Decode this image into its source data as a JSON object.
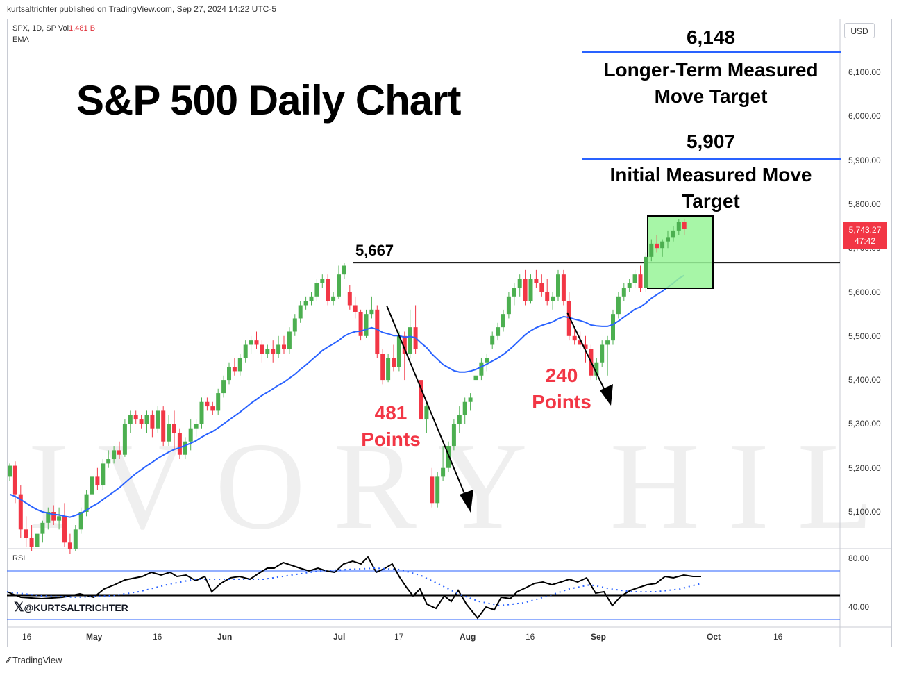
{
  "header": {
    "text": "kurtsaltrichter published on TradingView.com, Sep 27, 2024 14:22 UTC-5"
  },
  "ticker": {
    "symbol": "SPX, 1D, SP  Vol",
    "volume": "1.481 B",
    "indicator": "EMA"
  },
  "currency": "USD",
  "title": "S&P 500 Daily Chart",
  "targets": [
    {
      "value": "6,148",
      "label": "Longer-Term Measured Move Target"
    },
    {
      "value": "5,907",
      "label": "Initial Measured Move Target"
    }
  ],
  "resistance": {
    "label": "5,667",
    "price": 5667
  },
  "annotations": [
    {
      "value": "481",
      "unit": "Points"
    },
    {
      "value": "240",
      "unit": "Points"
    }
  ],
  "price_tag": {
    "price": "5,743.27",
    "countdown": "47:42"
  },
  "rsi": {
    "label": "RSI",
    "levels": [
      "80.00",
      "40.00"
    ]
  },
  "watermark_handle": "@KURTSALTRICHTER",
  "footer": {
    "brand": "TradingView"
  },
  "colors": {
    "up": "#4caf50",
    "down": "#f23645",
    "ema": "#2962ff",
    "target_line": "#2962ff",
    "box": "#98f598"
  },
  "chart_data": {
    "type": "candlestick",
    "y_ticks": [
      "6,100.00",
      "6,000.00",
      "5,900.00",
      "5,800.00",
      "5,700.00",
      "5,600.00",
      "5,500.00",
      "5,400.00",
      "5,300.00",
      "5,200.00",
      "5,100.00"
    ],
    "ylim": [
      5010,
      6220
    ],
    "x_ticks": [
      "16",
      "May",
      "16",
      "Jun",
      "Jul",
      "17",
      "Aug",
      "16",
      "Sep",
      "Oct",
      "16"
    ],
    "ohlc": [
      [
        5180,
        5210,
        5170,
        5205
      ],
      [
        5205,
        5215,
        5120,
        5140
      ],
      [
        5140,
        5160,
        5040,
        5060
      ],
      [
        5060,
        5090,
        5020,
        5040
      ],
      [
        5040,
        5070,
        5010,
        5020
      ],
      [
        5020,
        5060,
        5015,
        5050
      ],
      [
        5050,
        5080,
        5030,
        5075
      ],
      [
        5075,
        5110,
        5060,
        5100
      ],
      [
        5100,
        5115,
        5070,
        5080
      ],
      [
        5080,
        5110,
        5060,
        5090
      ],
      [
        5090,
        5120,
        5020,
        5030
      ],
      [
        5030,
        5050,
        5005,
        5015
      ],
      [
        5015,
        5070,
        5010,
        5060
      ],
      [
        5060,
        5110,
        5050,
        5100
      ],
      [
        5100,
        5150,
        5090,
        5140
      ],
      [
        5140,
        5190,
        5130,
        5180
      ],
      [
        5180,
        5200,
        5150,
        5160
      ],
      [
        5160,
        5220,
        5150,
        5210
      ],
      [
        5210,
        5240,
        5200,
        5220
      ],
      [
        5220,
        5250,
        5210,
        5240
      ],
      [
        5240,
        5260,
        5220,
        5230
      ],
      [
        5230,
        5310,
        5225,
        5300
      ],
      [
        5300,
        5330,
        5280,
        5320
      ],
      [
        5320,
        5330,
        5300,
        5310
      ],
      [
        5310,
        5320,
        5290,
        5300
      ],
      [
        5300,
        5330,
        5280,
        5320
      ],
      [
        5320,
        5330,
        5270,
        5290
      ],
      [
        5290,
        5340,
        5280,
        5330
      ],
      [
        5330,
        5340,
        5250,
        5260
      ],
      [
        5260,
        5320,
        5250,
        5300
      ],
      [
        5300,
        5330,
        5240,
        5280
      ],
      [
        5280,
        5290,
        5220,
        5230
      ],
      [
        5230,
        5270,
        5220,
        5260
      ],
      [
        5260,
        5310,
        5240,
        5290
      ],
      [
        5290,
        5310,
        5270,
        5300
      ],
      [
        5300,
        5360,
        5290,
        5350
      ],
      [
        5350,
        5360,
        5330,
        5340
      ],
      [
        5340,
        5350,
        5320,
        5330
      ],
      [
        5330,
        5380,
        5320,
        5370
      ],
      [
        5370,
        5410,
        5360,
        5400
      ],
      [
        5400,
        5440,
        5390,
        5430
      ],
      [
        5430,
        5450,
        5410,
        5420
      ],
      [
        5420,
        5460,
        5410,
        5450
      ],
      [
        5450,
        5490,
        5440,
        5480
      ],
      [
        5480,
        5500,
        5460,
        5490
      ],
      [
        5490,
        5510,
        5470,
        5480
      ],
      [
        5480,
        5490,
        5440,
        5460
      ],
      [
        5460,
        5480,
        5450,
        5470
      ],
      [
        5470,
        5490,
        5440,
        5460
      ],
      [
        5460,
        5500,
        5450,
        5480
      ],
      [
        5480,
        5500,
        5460,
        5470
      ],
      [
        5470,
        5520,
        5460,
        5510
      ],
      [
        5510,
        5550,
        5500,
        5540
      ],
      [
        5540,
        5580,
        5530,
        5570
      ],
      [
        5570,
        5590,
        5560,
        5580
      ],
      [
        5580,
        5600,
        5570,
        5590
      ],
      [
        5590,
        5630,
        5580,
        5620
      ],
      [
        5620,
        5640,
        5610,
        5630
      ],
      [
        5630,
        5640,
        5570,
        5580
      ],
      [
        5580,
        5600,
        5570,
        5590
      ],
      [
        5590,
        5660,
        5585,
        5640
      ],
      [
        5640,
        5667,
        5630,
        5660
      ],
      [
        5600,
        5615,
        5560,
        5570
      ],
      [
        5570,
        5590,
        5540,
        5555
      ],
      [
        5555,
        5560,
        5490,
        5500
      ],
      [
        5500,
        5560,
        5495,
        5550
      ],
      [
        5550,
        5590,
        5540,
        5560
      ],
      [
        5560,
        5570,
        5450,
        5460
      ],
      [
        5460,
        5470,
        5390,
        5400
      ],
      [
        5400,
        5460,
        5395,
        5450
      ],
      [
        5450,
        5480,
        5420,
        5430
      ],
      [
        5430,
        5510,
        5420,
        5500
      ],
      [
        5500,
        5510,
        5400,
        5460
      ],
      [
        5460,
        5560,
        5450,
        5520
      ],
      [
        5520,
        5570,
        5460,
        5470
      ],
      [
        5400,
        5410,
        5300,
        5310
      ],
      [
        5310,
        5350,
        5280,
        5340
      ],
      [
        5180,
        5200,
        5110,
        5120
      ],
      [
        5120,
        5190,
        5110,
        5180
      ],
      [
        5180,
        5250,
        5170,
        5200
      ],
      [
        5200,
        5260,
        5190,
        5250
      ],
      [
        5250,
        5310,
        5240,
        5300
      ],
      [
        5300,
        5340,
        5280,
        5320
      ],
      [
        5320,
        5360,
        5300,
        5350
      ],
      [
        5350,
        5370,
        5330,
        5360
      ],
      [
        5400,
        5420,
        5390,
        5410
      ],
      [
        5410,
        5450,
        5400,
        5440
      ],
      [
        5440,
        5460,
        5420,
        5450
      ],
      [
        5480,
        5510,
        5470,
        5500
      ],
      [
        5500,
        5530,
        5490,
        5520
      ],
      [
        5520,
        5560,
        5510,
        5550
      ],
      [
        5550,
        5600,
        5540,
        5590
      ],
      [
        5590,
        5620,
        5570,
        5610
      ],
      [
        5610,
        5640,
        5590,
        5630
      ],
      [
        5630,
        5650,
        5570,
        5580
      ],
      [
        5580,
        5640,
        5575,
        5630
      ],
      [
        5630,
        5650,
        5610,
        5620
      ],
      [
        5620,
        5640,
        5590,
        5600
      ],
      [
        5600,
        5630,
        5570,
        5580
      ],
      [
        5580,
        5600,
        5560,
        5590
      ],
      [
        5590,
        5650,
        5580,
        5640
      ],
      [
        5640,
        5650,
        5570,
        5580
      ],
      [
        5580,
        5600,
        5490,
        5500
      ],
      [
        5500,
        5520,
        5480,
        5490
      ],
      [
        5490,
        5510,
        5470,
        5480
      ],
      [
        5480,
        5500,
        5440,
        5470
      ],
      [
        5470,
        5480,
        5400,
        5410
      ],
      [
        5410,
        5450,
        5400,
        5440
      ],
      [
        5440,
        5490,
        5430,
        5480
      ],
      [
        5480,
        5500,
        5410,
        5490
      ],
      [
        5490,
        5560,
        5480,
        5550
      ],
      [
        5550,
        5600,
        5540,
        5590
      ],
      [
        5590,
        5620,
        5580,
        5610
      ],
      [
        5610,
        5630,
        5600,
        5620
      ],
      [
        5620,
        5650,
        5610,
        5640
      ],
      [
        5640,
        5660,
        5600,
        5610
      ],
      [
        5610,
        5690,
        5600,
        5680
      ],
      [
        5680,
        5720,
        5670,
        5710
      ],
      [
        5710,
        5730,
        5690,
        5700
      ],
      [
        5700,
        5720,
        5680,
        5715
      ],
      [
        5715,
        5740,
        5700,
        5725
      ],
      [
        5725,
        5750,
        5715,
        5740
      ],
      [
        5740,
        5765,
        5730,
        5760
      ],
      [
        5760,
        5765,
        5730,
        5743
      ]
    ],
    "ema": [
      5140,
      5135,
      5128,
      5120,
      5112,
      5105,
      5100,
      5097,
      5094,
      5093,
      5090,
      5088,
      5092,
      5097,
      5104,
      5112,
      5119,
      5128,
      5137,
      5146,
      5155,
      5166,
      5177,
      5187,
      5196,
      5205,
      5213,
      5222,
      5229,
      5236,
      5242,
      5246,
      5251,
      5256,
      5262,
      5270,
      5277,
      5283,
      5291,
      5300,
      5309,
      5318,
      5327,
      5337,
      5347,
      5356,
      5365,
      5372,
      5380,
      5388,
      5395,
      5404,
      5413,
      5424,
      5434,
      5445,
      5456,
      5467,
      5475,
      5482,
      5490,
      5500,
      5506,
      5510,
      5511,
      5515,
      5519,
      5515,
      5508,
      5505,
      5501,
      5501,
      5497,
      5499,
      5496,
      5484,
      5474,
      5459,
      5447,
      5435,
      5428,
      5421,
      5418,
      5418,
      5420,
      5424,
      5430,
      5436,
      5443,
      5450,
      5458,
      5468,
      5479,
      5491,
      5503,
      5512,
      5519,
      5524,
      5528,
      5532,
      5539,
      5544,
      5542,
      5538,
      5535,
      5531,
      5525,
      5523,
      5522,
      5522,
      5526,
      5534,
      5543,
      5552,
      5561,
      5566,
      5575,
      5586,
      5594,
      5602,
      5611,
      5620,
      5631,
      5638
    ]
  }
}
